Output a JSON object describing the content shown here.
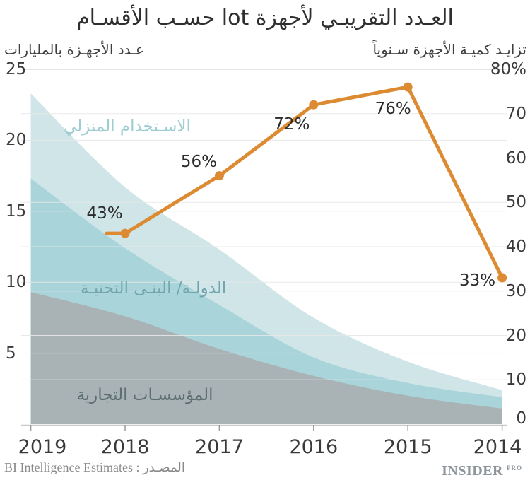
{
  "title": "العـدد التقريبـي لأجهزة lot حسـب الأقسـام",
  "axes": {
    "left_title": "عـدد الأجهـزة بالمليارات",
    "right_title": "تزايـد كميـة الأجهزة سـنوياً",
    "left_ticks": [
      "25",
      "20",
      "15",
      "10",
      "5"
    ],
    "right_ticks": [
      "80%",
      "70",
      "60",
      "50",
      "40",
      "30",
      "20",
      "10",
      "0"
    ],
    "x_ticks": [
      "2019",
      "2018",
      "2017",
      "2016",
      "2015",
      "2014"
    ]
  },
  "chart_data": {
    "type": "area",
    "stacked": true,
    "x_categories": [
      "2019",
      "2018",
      "2017",
      "2016",
      "2015",
      "2014"
    ],
    "x_axis_reversed_rtl": true,
    "left_axis": {
      "label": "عـدد الأجهـزة بالمليارات",
      "unit": "billions of devices",
      "range": [
        0,
        25
      ],
      "ticks": [
        25,
        20,
        15,
        10,
        5
      ]
    },
    "right_axis": {
      "label": "تزايـد كميـة الأجهزة سـنوياً",
      "unit": "percent annual growth",
      "range": [
        0,
        80
      ],
      "ticks": [
        80,
        70,
        60,
        50,
        40,
        30,
        20,
        10,
        0
      ]
    },
    "grid": true,
    "area_series": [
      {
        "name": "المؤسسـات التجارية",
        "name_en": "commercial-enterprises",
        "color": "#a9b3b5",
        "values": [
          9.3,
          7.6,
          5.3,
          3.4,
          2.0,
          1.1
        ]
      },
      {
        "name": "الدولـة/ البنـى التحتيـة",
        "name_en": "state-infrastructure",
        "color": "#a9d4d9",
        "values": [
          8.0,
          4.8,
          3.1,
          1.3,
          0.9,
          0.8
        ]
      },
      {
        "name": "الاسـتخدام المنزلي",
        "name_en": "home-use",
        "color": "#cfe5e8",
        "values": [
          6.0,
          4.3,
          3.9,
          2.8,
          1.5,
          0.5
        ]
      }
    ],
    "line_series": {
      "name_en": "annual-growth-percent",
      "color": "#dd8b33",
      "x": [
        "2018",
        "2017",
        "2016",
        "2015",
        "2014"
      ],
      "values": [
        43,
        56,
        72,
        76,
        33
      ],
      "labels": [
        "43%",
        "56%",
        "72%",
        "76%",
        "33%"
      ]
    }
  },
  "footer": {
    "source": "BI Intelligence Estimates : المصـدر",
    "logo_main": "INSIDER",
    "logo_sub": "PRO"
  }
}
